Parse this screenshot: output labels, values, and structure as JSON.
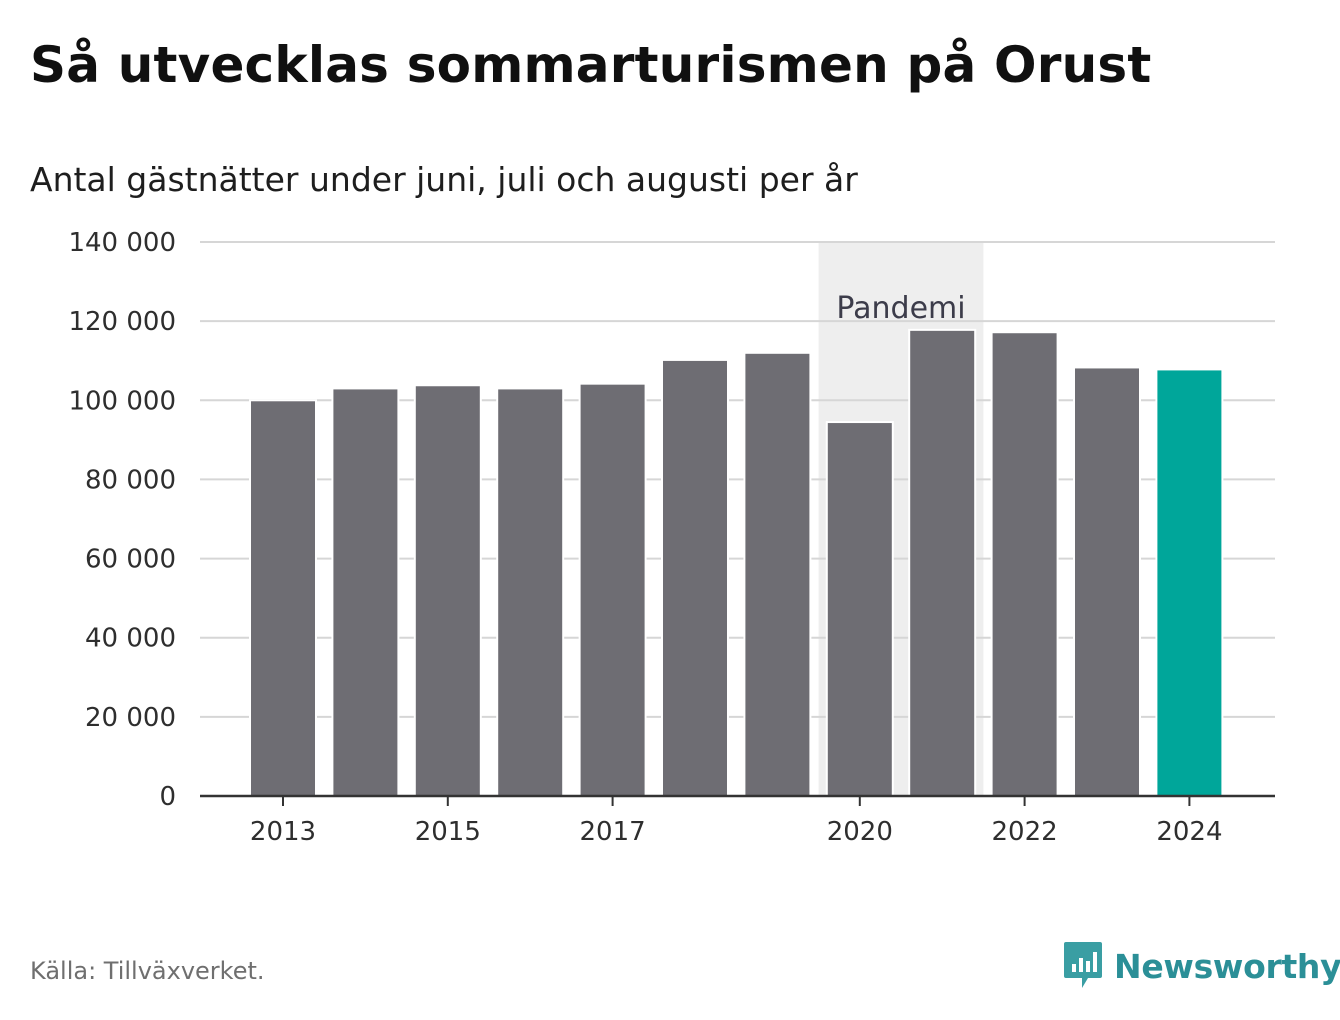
{
  "header": {
    "title": "Så utvecklas sommarturismen på Orust",
    "subtitle": "Antal gästnätter under juni, juli och augusti per år"
  },
  "chart_data": {
    "type": "bar",
    "categories": [
      "2013",
      "2014",
      "2015",
      "2016",
      "2017",
      "2018",
      "2019",
      "2020",
      "2021",
      "2022",
      "2023",
      "2024"
    ],
    "values": [
      100000,
      103000,
      103800,
      103000,
      104200,
      110200,
      112000,
      94500,
      117800,
      117200,
      108300,
      107800
    ],
    "x_tick_labels": [
      "2013",
      "2015",
      "2017",
      "2020",
      "2022",
      "2024"
    ],
    "y_tick_labels": [
      "0",
      "20 000",
      "40 000",
      "60 000",
      "80 000",
      "100 000",
      "120 000",
      "140 000"
    ],
    "ylim": [
      0,
      140000
    ],
    "y_ticks": [
      0,
      20000,
      40000,
      60000,
      80000,
      100000,
      120000,
      140000
    ],
    "grid": true,
    "highlight_category": "2024",
    "annotation": {
      "label": "Pandemi",
      "from": "2020",
      "to": "2021"
    },
    "colors": {
      "bar": "#6e6d73",
      "highlight": "#00a69a",
      "band": "#eeeeee",
      "grid": "#d6d6d6",
      "axis": "#333333"
    }
  },
  "footer": {
    "source": "Källa: Tillväxverket.",
    "brand": "Newsworthy",
    "brand_icon": "newsworthy-logo-icon"
  }
}
